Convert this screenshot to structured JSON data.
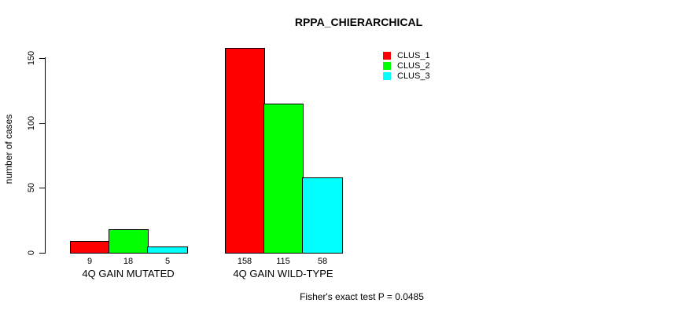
{
  "chart_data": {
    "type": "bar",
    "title": "RPPA_CHIERARCHICAL",
    "xlabel": "",
    "ylabel": "number of cases",
    "ylim": [
      0,
      150
    ],
    "yticks": [
      0,
      50,
      100,
      150
    ],
    "grid": false,
    "legend_position": "top-right",
    "categories": [
      "4Q GAIN MUTATED",
      "4Q GAIN WILD-TYPE"
    ],
    "series": [
      {
        "name": "CLUS_1",
        "color": "#ff0000",
        "values": [
          9,
          158
        ]
      },
      {
        "name": "CLUS_2",
        "color": "#00ff00",
        "values": [
          18,
          115
        ]
      },
      {
        "name": "CLUS_3",
        "color": "#00ffff",
        "values": [
          5,
          58
        ]
      }
    ],
    "bar_value_labels": [
      [
        "9",
        "18",
        "5"
      ],
      [
        "158",
        "115",
        "58"
      ]
    ],
    "annotation": "Fisher's exact test P = 0.0485"
  }
}
